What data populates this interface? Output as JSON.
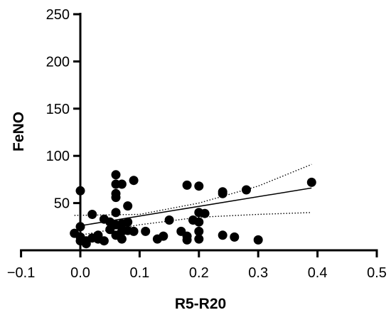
{
  "chart_data": {
    "type": "scatter",
    "title": "",
    "xlabel": "R5-R20",
    "ylabel": "FeNO",
    "xlim": [
      -0.1,
      0.5
    ],
    "ylim": [
      0,
      250
    ],
    "xticks": [
      -0.1,
      0.0,
      0.1,
      0.2,
      0.3,
      0.4,
      0.5
    ],
    "xtick_labels": [
      "-0.1",
      "0.0",
      "0.1",
      "0.2",
      "0.3",
      "0.4",
      "0.5"
    ],
    "yticks": [
      50,
      100,
      150,
      200,
      250
    ],
    "ytick_labels": [
      "50",
      "100",
      "150",
      "200",
      "250"
    ],
    "grid": false,
    "legend": "none",
    "point_color": "#000000",
    "points": [
      {
        "x": 0.0,
        "y": 63
      },
      {
        "x": 0.0,
        "y": 25
      },
      {
        "x": -0.01,
        "y": 18
      },
      {
        "x": 0.0,
        "y": 14
      },
      {
        "x": 0.0,
        "y": 10
      },
      {
        "x": 0.01,
        "y": 7
      },
      {
        "x": 0.01,
        "y": 10
      },
      {
        "x": 0.02,
        "y": 13
      },
      {
        "x": 0.02,
        "y": 38
      },
      {
        "x": 0.03,
        "y": 16
      },
      {
        "x": 0.03,
        "y": 12
      },
      {
        "x": 0.04,
        "y": 33
      },
      {
        "x": 0.04,
        "y": 10
      },
      {
        "x": 0.05,
        "y": 30
      },
      {
        "x": 0.05,
        "y": 22
      },
      {
        "x": 0.06,
        "y": 80
      },
      {
        "x": 0.06,
        "y": 70
      },
      {
        "x": 0.06,
        "y": 60
      },
      {
        "x": 0.06,
        "y": 56
      },
      {
        "x": 0.06,
        "y": 40
      },
      {
        "x": 0.06,
        "y": 27
      },
      {
        "x": 0.06,
        "y": 16
      },
      {
        "x": 0.07,
        "y": 70
      },
      {
        "x": 0.07,
        "y": 28
      },
      {
        "x": 0.07,
        "y": 20
      },
      {
        "x": 0.07,
        "y": 12
      },
      {
        "x": 0.08,
        "y": 47
      },
      {
        "x": 0.08,
        "y": 30
      },
      {
        "x": 0.08,
        "y": 21
      },
      {
        "x": 0.09,
        "y": 74
      },
      {
        "x": 0.09,
        "y": 20
      },
      {
        "x": 0.11,
        "y": 20
      },
      {
        "x": 0.13,
        "y": 12
      },
      {
        "x": 0.14,
        "y": 15
      },
      {
        "x": 0.15,
        "y": 32
      },
      {
        "x": 0.17,
        "y": 20
      },
      {
        "x": 0.18,
        "y": 69
      },
      {
        "x": 0.18,
        "y": 15
      },
      {
        "x": 0.18,
        "y": 11
      },
      {
        "x": 0.19,
        "y": 32
      },
      {
        "x": 0.2,
        "y": 68
      },
      {
        "x": 0.2,
        "y": 40
      },
      {
        "x": 0.2,
        "y": 30
      },
      {
        "x": 0.2,
        "y": 20
      },
      {
        "x": 0.2,
        "y": 12
      },
      {
        "x": 0.21,
        "y": 39
      },
      {
        "x": 0.24,
        "y": 62
      },
      {
        "x": 0.24,
        "y": 60
      },
      {
        "x": 0.24,
        "y": 16
      },
      {
        "x": 0.26,
        "y": 14
      },
      {
        "x": 0.28,
        "y": 64
      },
      {
        "x": 0.3,
        "y": 11
      },
      {
        "x": 0.39,
        "y": 72
      }
    ],
    "fit_line": {
      "x": [
        0.0,
        0.39
      ],
      "y": [
        26,
        66
      ]
    },
    "ci_upper": {
      "x": [
        -0.01,
        0.1,
        0.2,
        0.3,
        0.39
      ],
      "y": [
        37,
        38,
        50,
        68,
        91
      ]
    },
    "ci_lower": {
      "x": [
        -0.01,
        0.1,
        0.2,
        0.3,
        0.39
      ],
      "y": [
        15,
        27,
        35,
        38,
        40
      ]
    }
  }
}
